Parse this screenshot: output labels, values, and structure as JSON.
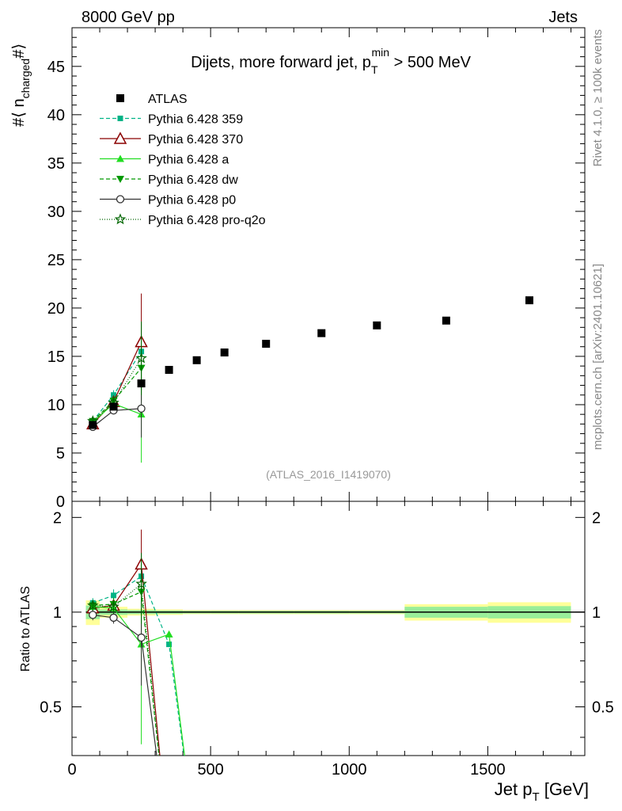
{
  "header": {
    "left": "8000 GeV pp",
    "right": "Jets"
  },
  "side": {
    "rivet": "Rivet 4.1.0, ≥ 100k events",
    "mcplots": "mcplots.cern.ch [arXiv:2401.10621]"
  },
  "chart_data": {
    "type": "scatter",
    "title": "Dijets, more forward jet, p_T^min > 500 MeV",
    "title_main": "Dijets, more forward jet, p",
    "title_sub": "T",
    "title_sup": "min",
    "title_tail": " > 500 MeV",
    "analysis_label": "(ATLAS_2016_I1419070)",
    "ylabel_parts": [
      "#⟨ n",
      "charged",
      "#⟩"
    ],
    "xlabel": "Jet p",
    "xlabel_sub": "T",
    "xlabel_unit": " [GeV]",
    "ratio_ylabel": "Ratio to ATLAS",
    "xlim": [
      0,
      1850
    ],
    "ylim": [
      0,
      49
    ],
    "ratio_ylim": [
      0.35,
      2.25
    ],
    "x_ticks": [
      0,
      500,
      1000,
      1500
    ],
    "y_ticks": [
      0,
      5,
      10,
      15,
      20,
      25,
      30,
      35,
      40,
      45
    ],
    "ratio_ticks": [
      0.5,
      1,
      2
    ],
    "data": {
      "name": "ATLAS",
      "x": [
        75,
        150,
        250,
        350,
        450,
        550,
        700,
        900,
        1100,
        1350,
        1650
      ],
      "y": [
        7.9,
        9.8,
        12.2,
        13.6,
        14.6,
        15.4,
        16.3,
        17.4,
        18.2,
        18.7,
        20.8
      ],
      "xlow": [
        50,
        100,
        200,
        300,
        400,
        500,
        600,
        800,
        1000,
        1200,
        1500
      ],
      "xhigh": [
        100,
        200,
        300,
        400,
        500,
        600,
        800,
        1000,
        1200,
        1500,
        1800
      ],
      "stat_rel": [
        0.05,
        0.02,
        0.015,
        0.012,
        0.01,
        0.01,
        0.01,
        0.01,
        0.01,
        0.04,
        0.045
      ],
      "tot_rel": [
        0.09,
        0.04,
        0.025,
        0.02,
        0.015,
        0.015,
        0.015,
        0.015,
        0.015,
        0.06,
        0.075
      ]
    },
    "series": [
      {
        "name": "Pythia 6.428 359",
        "color": "#00b386",
        "marker": "square-small",
        "dash": "5,3",
        "x": [
          75,
          150,
          250
        ],
        "y": [
          8.3,
          11.0,
          15.5
        ],
        "err": [
          0.3,
          0.5,
          3.0
        ],
        "ratio": [
          1.07,
          1.13,
          1.3,
          0.79,
          0.0
        ]
      },
      {
        "name": "Pythia 6.428 370",
        "color": "#8b0000",
        "marker": "triangle-open",
        "dash": "",
        "x": [
          75,
          150,
          250
        ],
        "y": [
          8.0,
          10.3,
          16.5
        ],
        "err": [
          0.3,
          0.5,
          5.0
        ],
        "ratio": [
          1.03,
          1.05,
          1.42,
          0.0
        ]
      },
      {
        "name": "Pythia 6.428 a",
        "color": "#22dd22",
        "marker": "triangle-up",
        "dash": "",
        "x": [
          75,
          150,
          250
        ],
        "y": [
          8.2,
          10.1,
          9.0
        ],
        "err": [
          0.3,
          0.5,
          5.0
        ],
        "ratio": [
          1.04,
          1.03,
          0.79,
          0.85,
          0.0
        ]
      },
      {
        "name": "Pythia 6.428 dw",
        "color": "#009900",
        "marker": "triangle-down",
        "dash": "5,3",
        "x": [
          75,
          150,
          250
        ],
        "y": [
          8.3,
          10.4,
          13.8
        ],
        "err": [
          0.3,
          0.5,
          3.5
        ],
        "ratio": [
          1.05,
          1.06,
          1.16,
          0.0
        ]
      },
      {
        "name": "Pythia 6.428 p0",
        "color": "#333333",
        "marker": "circle-open",
        "dash": "",
        "x": [
          75,
          150,
          250
        ],
        "y": [
          7.7,
          9.4,
          9.6
        ],
        "err": [
          0.3,
          0.4,
          3.0
        ],
        "ratio": [
          0.98,
          0.96,
          0.83,
          0.0
        ]
      },
      {
        "name": "Pythia 6.428 pro-q2o",
        "color": "#006600",
        "marker": "star",
        "dash": "1,2",
        "x": [
          75,
          150,
          250
        ],
        "y": [
          8.3,
          10.2,
          14.8
        ],
        "err": [
          0.3,
          0.5,
          3.8
        ],
        "ratio": [
          1.05,
          1.04,
          1.23,
          0.0
        ]
      }
    ]
  }
}
